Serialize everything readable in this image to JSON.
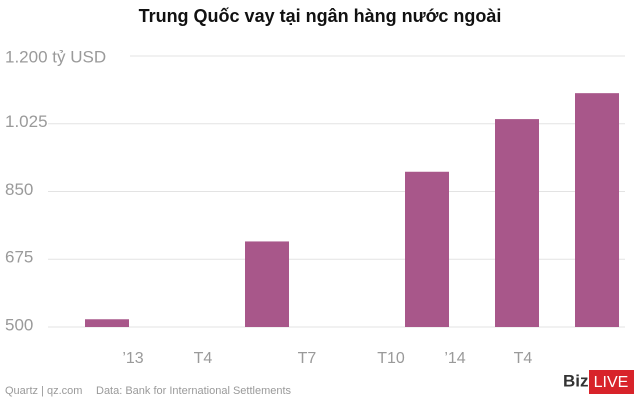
{
  "chart_data": {
    "type": "bar",
    "title": "Trung Quốc vay tại ngân hàng nước ngoài",
    "categories": [
      null,
      null,
      null,
      null,
      null
    ],
    "values": [
      520,
      721,
      901,
      1037,
      1104
    ],
    "color": "#a8578a",
    "ylim": [
      500,
      1200
    ],
    "yticks": [
      500,
      675,
      850,
      {
        "value": 1025,
        "label": "1.025"
      },
      {
        "value": 1200,
        "label": "1.200 tỷ USD"
      }
    ],
    "x_labels": [
      "’13",
      "T4",
      "T7",
      "T10",
      "’14",
      "T4"
    ],
    "grid": true,
    "source_site": "Quartz | qz.com",
    "source_data": "Data: Bank for International Settlements",
    "logo": {
      "left": "Biz",
      "right": "LIVE"
    }
  }
}
